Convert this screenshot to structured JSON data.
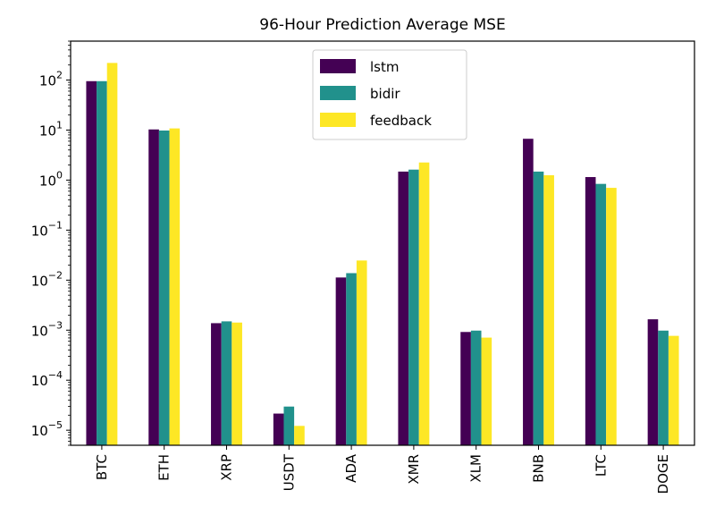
{
  "chart_data": {
    "type": "bar",
    "title": "96-Hour Prediction Average MSE",
    "xlabel": "",
    "ylabel": "",
    "yscale": "log",
    "ylim": [
      5e-06,
      600
    ],
    "y_ticks": [
      {
        "value": 1e-05,
        "base": "10",
        "exp": "−5"
      },
      {
        "value": 0.0001,
        "base": "10",
        "exp": "−4"
      },
      {
        "value": 0.001,
        "base": "10",
        "exp": "−3"
      },
      {
        "value": 0.01,
        "base": "10",
        "exp": "−2"
      },
      {
        "value": 0.1,
        "base": "10",
        "exp": "−1"
      },
      {
        "value": 1,
        "base": "10",
        "exp": "0"
      },
      {
        "value": 10,
        "base": "10",
        "exp": "1"
      },
      {
        "value": 100,
        "base": "10",
        "exp": "2"
      }
    ],
    "categories": [
      "BTC",
      "ETH",
      "XRP",
      "USDT",
      "ADA",
      "XMR",
      "XLM",
      "BNB",
      "LTC",
      "DOGE"
    ],
    "series": [
      {
        "name": "lstm",
        "color": "#440154",
        "values": [
          95,
          10.3,
          0.00138,
          2.15e-05,
          0.0113,
          1.48,
          0.00092,
          6.7,
          1.15,
          0.00165
        ]
      },
      {
        "name": "bidir",
        "color": "#21918c",
        "values": [
          95,
          9.8,
          0.0015,
          2.97e-05,
          0.0138,
          1.62,
          0.00098,
          1.48,
          0.84,
          0.00098
        ]
      },
      {
        "name": "feedback",
        "color": "#fde725",
        "values": [
          220,
          10.8,
          0.00142,
          1.22e-05,
          0.0247,
          2.25,
          0.00071,
          1.25,
          0.7,
          0.00077
        ]
      }
    ],
    "legend": {
      "position": "upper center"
    },
    "grid": false
  }
}
